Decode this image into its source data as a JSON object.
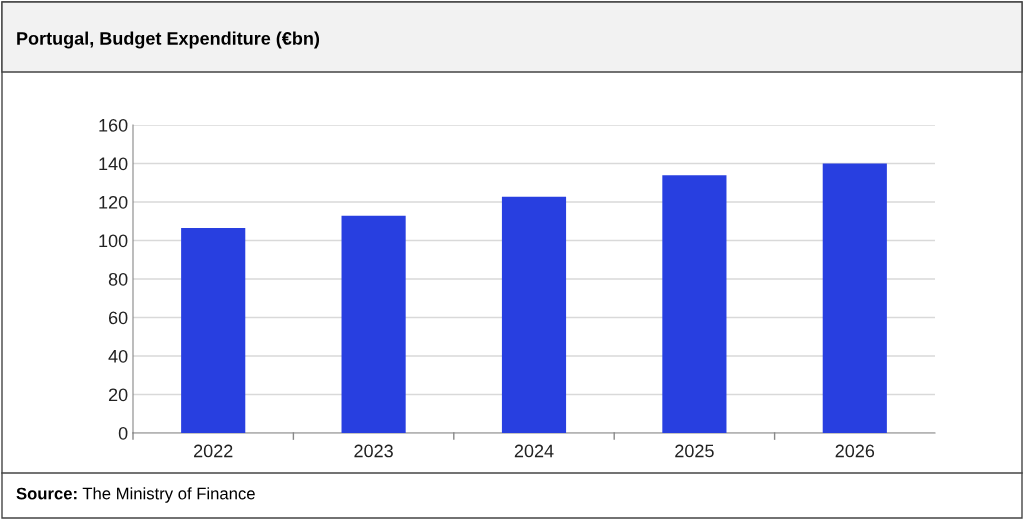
{
  "chart_data": {
    "type": "bar",
    "title": "Portugal, Budget Expenditure (€bn)",
    "categories": [
      "2022",
      "2023",
      "2024",
      "2025",
      "2026"
    ],
    "values": [
      106.5,
      112.8,
      122.7,
      133.9,
      140.0
    ],
    "color": "#283fe0",
    "ylim": [
      0,
      160
    ],
    "yticks": [
      0,
      20,
      40,
      60,
      80,
      100,
      120,
      140,
      160
    ],
    "grid": "y",
    "annotations": [
      "Source: The Ministry of Finance"
    ]
  }
}
